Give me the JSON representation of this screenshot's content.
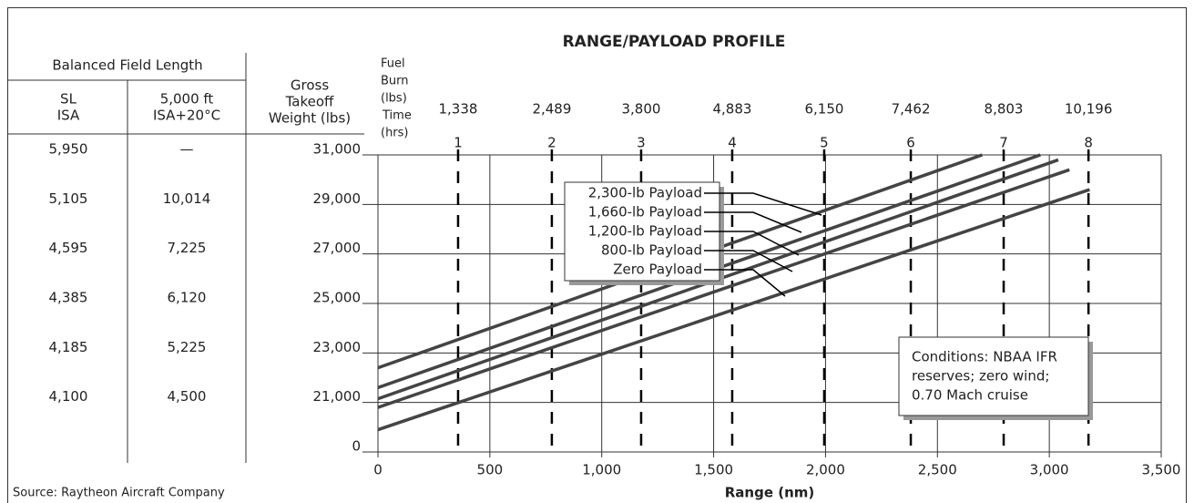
{
  "title": "RANGE/PAYLOAD PROFILE",
  "source": "Source: Raytheon Aircraft Company",
  "table": {
    "group_header": "Balanced Field Length",
    "columns": [
      [
        "SL",
        "ISA"
      ],
      [
        "5,000 ft",
        "ISA+20°C"
      ]
    ],
    "rows": [
      [
        "5,950",
        "—"
      ],
      [
        "5,105",
        "10,014"
      ],
      [
        "4,595",
        "7,225"
      ],
      [
        "4,385",
        "6,120"
      ],
      [
        "4,185",
        "5,225"
      ],
      [
        "4,100",
        "4,500"
      ]
    ]
  },
  "chart_data": {
    "type": "line",
    "y_label": [
      "Gross",
      "Takeoff",
      "Weight (lbs)"
    ],
    "top_label": [
      "Fuel",
      "Burn",
      "(lbs)",
      "Time",
      "(hrs)"
    ],
    "x_label": "Range (nm)",
    "xlim": [
      0,
      3500
    ],
    "xticks": [
      0,
      500,
      {
        "value": 1000,
        "label": "1,000"
      },
      {
        "value": 1500,
        "label": "1,500"
      },
      {
        "value": 2000,
        "label": "2,000"
      },
      {
        "value": 2500,
        "label": "2,500"
      },
      {
        "value": 3000,
        "label": "3,000"
      },
      {
        "value": 3500,
        "label": "3,500"
      }
    ],
    "ylim": [
      0,
      31000
    ],
    "axis_break": [
      0,
      19000
    ],
    "yticks": [
      {
        "value": 31000,
        "label": "31,000"
      },
      {
        "value": 29000,
        "label": "29,000"
      },
      {
        "value": 27000,
        "label": "27,000"
      },
      {
        "value": 25000,
        "label": "25,000"
      },
      {
        "value": 23000,
        "label": "23,000"
      },
      {
        "value": 21000,
        "label": "21,000"
      },
      0
    ],
    "grid": true,
    "series": [
      {
        "name": "2,300-lb Payload",
        "color": "#444444",
        "x": [
          0,
          2700
        ],
        "values": [
          22400,
          31000
        ]
      },
      {
        "name": "1,660-lb Payload",
        "color": "#444444",
        "x": [
          0,
          2960
        ],
        "values": [
          21600,
          31000
        ]
      },
      {
        "name": "1,200-lb Payload",
        "color": "#444444",
        "x": [
          0,
          3040
        ],
        "values": [
          21150,
          30800
        ]
      },
      {
        "name": "800-lb Payload",
        "color": "#444444",
        "x": [
          0,
          3090
        ],
        "values": [
          20800,
          30400
        ]
      },
      {
        "name": "Zero Payload",
        "color": "#444444",
        "x": [
          0,
          3180
        ],
        "values": [
          19900,
          29600
        ]
      }
    ],
    "time_markers": {
      "x": [
        358,
        777,
        1176,
        1583,
        1994,
        2381,
        2796,
        3175
      ],
      "hours": [
        1,
        2,
        3,
        4,
        5,
        6,
        7,
        8
      ],
      "fuel_burn": [
        1338,
        2489,
        3800,
        4883,
        6150,
        7462,
        8803,
        10196
      ],
      "fuel_burn_labels": [
        "1,338",
        "2,489",
        "3,800",
        "4,883",
        "6,150",
        "7,462",
        "8,803",
        "10,196"
      ]
    },
    "annotation": [
      "Conditions: NBAA IFR",
      "reserves; zero wind;",
      "0.70 Mach cruise"
    ]
  }
}
